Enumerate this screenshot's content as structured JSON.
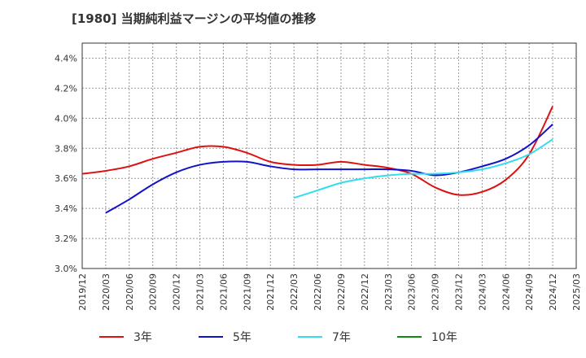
{
  "chart_data": {
    "type": "line",
    "title": "[1980]  当期純利益マージンの平均値の推移",
    "xlabel": "",
    "ylabel": "",
    "x_ticks": [
      "2019/12",
      "2020/03",
      "2020/06",
      "2020/09",
      "2020/12",
      "2021/03",
      "2021/06",
      "2021/09",
      "2021/12",
      "2022/03",
      "2022/06",
      "2022/09",
      "2022/12",
      "2023/03",
      "2023/06",
      "2023/09",
      "2023/12",
      "2024/03",
      "2024/06",
      "2024/09",
      "2024/12",
      "2025/03"
    ],
    "y_ticks": [
      "3.0%",
      "3.2%",
      "3.4%",
      "3.6%",
      "3.8%",
      "4.0%",
      "4.2%",
      "4.4%"
    ],
    "ylim": [
      3.0,
      4.5
    ],
    "grid": true,
    "legend_position": "bottom",
    "colors": {
      "3年": "#dd1111",
      "5年": "#1111cc",
      "7年": "#33ddee",
      "10年": "#118811"
    },
    "series": [
      {
        "name": "3年",
        "color": "#dd1111",
        "x": [
          "2019/12",
          "2020/03",
          "2020/06",
          "2020/09",
          "2020/12",
          "2021/03",
          "2021/06",
          "2021/09",
          "2021/12",
          "2022/03",
          "2022/06",
          "2022/09",
          "2022/12",
          "2023/03",
          "2023/06",
          "2023/09",
          "2023/12",
          "2024/03",
          "2024/06",
          "2024/09",
          "2024/12"
        ],
        "values": [
          3.63,
          3.65,
          3.68,
          3.73,
          3.77,
          3.81,
          3.81,
          3.77,
          3.71,
          3.69,
          3.69,
          3.71,
          3.69,
          3.67,
          3.63,
          3.54,
          3.49,
          3.51,
          3.59,
          3.76,
          4.08
        ]
      },
      {
        "name": "5年",
        "color": "#1111cc",
        "x": [
          "2020/03",
          "2020/06",
          "2020/09",
          "2020/12",
          "2021/03",
          "2021/06",
          "2021/09",
          "2021/12",
          "2022/03",
          "2022/06",
          "2022/09",
          "2022/12",
          "2023/03",
          "2023/06",
          "2023/09",
          "2023/12",
          "2024/03",
          "2024/06",
          "2024/09",
          "2024/12"
        ],
        "values": [
          3.37,
          3.46,
          3.56,
          3.64,
          3.69,
          3.71,
          3.71,
          3.68,
          3.66,
          3.66,
          3.66,
          3.66,
          3.66,
          3.65,
          3.62,
          3.64,
          3.68,
          3.73,
          3.82,
          3.96
        ]
      },
      {
        "name": "7年",
        "color": "#33ddee",
        "x": [
          "2022/03",
          "2022/06",
          "2022/09",
          "2022/12",
          "2023/03",
          "2023/06",
          "2023/09",
          "2023/12",
          "2024/03",
          "2024/06",
          "2024/09",
          "2024/12"
        ],
        "values": [
          3.47,
          3.52,
          3.57,
          3.6,
          3.62,
          3.63,
          3.63,
          3.64,
          3.66,
          3.7,
          3.76,
          3.86
        ]
      },
      {
        "name": "10年",
        "color": "#118811",
        "x": [],
        "values": []
      }
    ]
  }
}
